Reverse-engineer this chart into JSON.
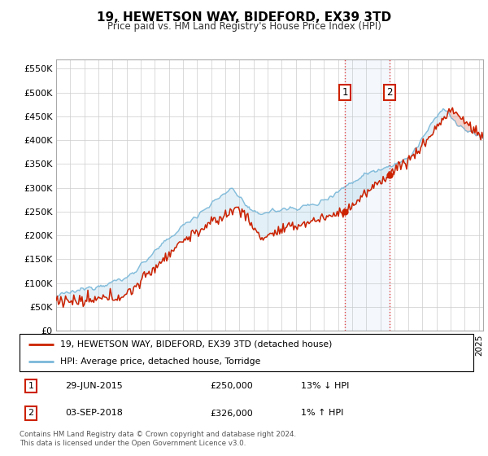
{
  "title": "19, HEWETSON WAY, BIDEFORD, EX39 3TD",
  "subtitle": "Price paid vs. HM Land Registry's House Price Index (HPI)",
  "ylabel_ticks": [
    "£0",
    "£50K",
    "£100K",
    "£150K",
    "£200K",
    "£250K",
    "£300K",
    "£350K",
    "£400K",
    "£450K",
    "£500K",
    "£550K"
  ],
  "ytick_vals": [
    0,
    50000,
    100000,
    150000,
    200000,
    250000,
    300000,
    350000,
    400000,
    450000,
    500000,
    550000
  ],
  "ylim": [
    0,
    570000
  ],
  "xlim_start": 1995.0,
  "xlim_end": 2025.3,
  "hpi_color": "#7ab8d9",
  "price_color": "#cc2200",
  "transaction1_date": 2015.49,
  "transaction1_price": 250000,
  "transaction2_date": 2018.67,
  "transaction2_price": 326000,
  "legend_line1": "19, HEWETSON WAY, BIDEFORD, EX39 3TD (detached house)",
  "legend_line2": "HPI: Average price, detached house, Torridge",
  "table_row1_num": "1",
  "table_row1_date": "29-JUN-2015",
  "table_row1_price": "£250,000",
  "table_row1_hpi": "13% ↓ HPI",
  "table_row2_num": "2",
  "table_row2_date": "03-SEP-2018",
  "table_row2_price": "£326,000",
  "table_row2_hpi": "1% ↑ HPI",
  "footer": "Contains HM Land Registry data © Crown copyright and database right 2024.\nThis data is licensed under the Open Government Licence v3.0.",
  "background_color": "#ffffff",
  "grid_color": "#cccccc"
}
